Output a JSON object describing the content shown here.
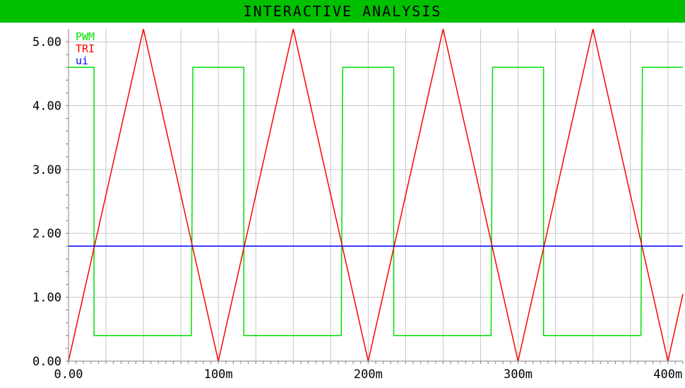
{
  "window": {
    "title": "INTERACTIVE ANALYSIS",
    "title_bar_color": "#00c000"
  },
  "chart_data": {
    "type": "line",
    "title": "INTERACTIVE ANALYSIS",
    "xlabel": "",
    "ylabel": "",
    "xlim": [
      0,
      410
    ],
    "ylim": [
      0,
      5.2
    ],
    "x_unit": "m",
    "grid": true,
    "legend_position": "top-left",
    "y_ticks": [
      0,
      1,
      2,
      3,
      4,
      5
    ],
    "y_tick_labels": [
      "0.00",
      "1.00",
      "2.00",
      "3.00",
      "4.00",
      "5.00"
    ],
    "x_ticks": [
      0,
      100,
      200,
      300,
      400
    ],
    "x_tick_labels": [
      "0.00",
      "100m",
      "200m",
      "300m",
      "400m"
    ],
    "series": [
      {
        "name": "PWM",
        "color": "#00e000",
        "x": [
          0,
          17,
          17,
          82,
          83,
          117,
          117,
          182,
          183,
          217,
          217,
          282,
          283,
          317,
          317,
          382,
          383,
          410
        ],
        "y": [
          4.6,
          4.6,
          0.4,
          0.4,
          4.6,
          4.6,
          0.4,
          0.4,
          4.6,
          4.6,
          0.4,
          0.4,
          4.6,
          4.6,
          0.4,
          0.4,
          4.6,
          4.6
        ]
      },
      {
        "name": "TRI",
        "color": "#ff0000",
        "x": [
          0,
          50,
          100,
          150,
          200,
          250,
          300,
          350,
          400,
          410
        ],
        "y": [
          0,
          5.2,
          0,
          5.2,
          0,
          5.2,
          0,
          5.2,
          0,
          1.05
        ]
      },
      {
        "name": "ui",
        "color": "#0000ff",
        "x": [
          0,
          410
        ],
        "y": [
          1.8,
          1.8
        ]
      }
    ]
  }
}
